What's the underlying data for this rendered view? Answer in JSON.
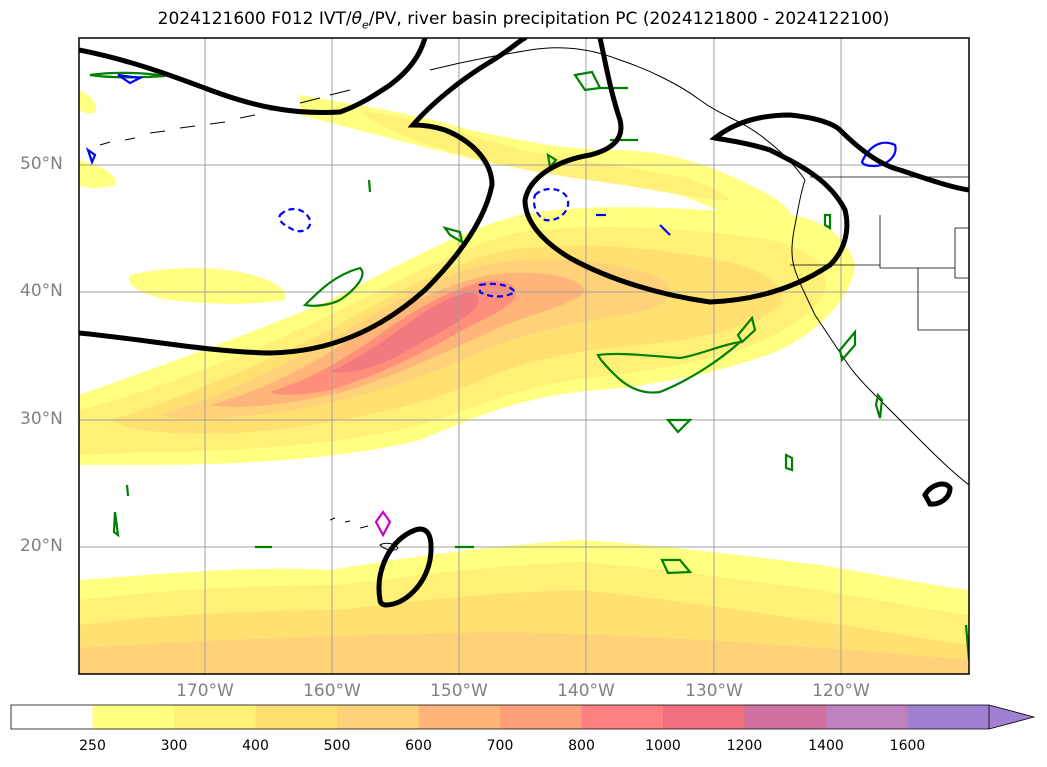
{
  "title_prefix": "2024121600 F012 IVT/",
  "title_theta": "θ",
  "title_theta_sub": "e",
  "title_suffix": "/PV, river basin precipitation PC (2024121800 - 2024122100)",
  "lat_labels": [
    "50°N",
    "40°N",
    "30°N",
    "20°N"
  ],
  "lon_labels": [
    "170°W",
    "160°W",
    "150°W",
    "140°W",
    "130°W",
    "120°W"
  ],
  "colorbar": {
    "levels": [
      "250",
      "300",
      "400",
      "500",
      "600",
      "700",
      "800",
      "1000",
      "1200",
      "1400",
      "1600"
    ],
    "colors": [
      "#ffffff",
      "#ffff80",
      "#fff078",
      "#ffe070",
      "#ffd27a",
      "#ffb47a",
      "#ffa07a",
      "#ff8080",
      "#f07080",
      "#d070a0",
      "#c080c0",
      "#a080d0"
    ]
  },
  "legend_colors": {
    "thick_contour": "#000000",
    "dashed_contour": "#0000ff",
    "green_contour": "#008000",
    "magenta_contour": "#cc00cc"
  }
}
